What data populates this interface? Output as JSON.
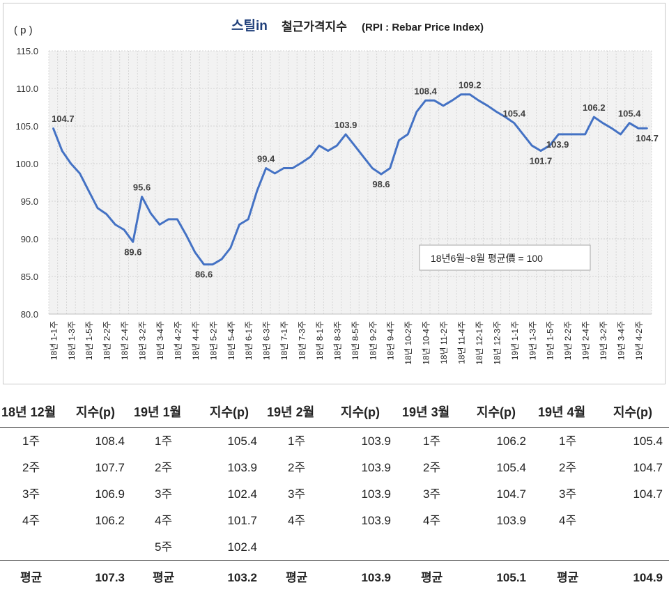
{
  "chart_data": {
    "type": "line",
    "title_brand": "스틸in",
    "title": "철근가격지수",
    "title_suffix": "(RPI : Rebar Price Index)",
    "ylabel": "( p )",
    "ylim": [
      80,
      115
    ],
    "yticks": [
      "80.0",
      "85.0",
      "90.0",
      "95.0",
      "100.0",
      "105.0",
      "110.0",
      "115.0"
    ],
    "grid": "vertical and horizontal dotted",
    "legend_note": "18년6월~8월 평균價 = 100",
    "line_color": "#4472c4",
    "categories": [
      "18년 1-1주",
      "",
      "18년 1-3주",
      "",
      "18년 1-5주",
      "",
      "18년 2-2주",
      "",
      "18년 2-4주",
      "",
      "18년 3-2주",
      "",
      "18년 3-4주",
      "",
      "18년 4-2주",
      "",
      "18년 4-4주",
      "",
      "18년 5-2주",
      "",
      "18년 5-4주",
      "",
      "18년 6-1주",
      "",
      "18년 6-3주",
      "",
      "18년 7-1주",
      "",
      "18년 7-3주",
      "",
      "18년 8-1주",
      "",
      "18년 8-3주",
      "",
      "18년 8-5주",
      "",
      "18년 9-2주",
      "",
      "18년 9-4주",
      "",
      "18년 10-2주",
      "",
      "18년 10-4주",
      "",
      "18년 11-2주",
      "",
      "18년 11-4주",
      "",
      "18년 12-1주",
      "",
      "18년 12-3주",
      "",
      "19년 1-1주",
      "",
      "19년 1-3주",
      "",
      "19년 1-5주",
      "",
      "19년 2-2주",
      "",
      "19년 2-4주",
      "",
      "19년 3-2주",
      "",
      "19년 3-4주",
      "",
      "19년 4-2주",
      ""
    ],
    "values": [
      104.7,
      101.7,
      100.0,
      98.7,
      96.4,
      94.1,
      93.3,
      91.9,
      91.2,
      89.6,
      95.6,
      93.4,
      91.9,
      92.6,
      92.6,
      90.5,
      88.2,
      86.6,
      86.6,
      87.3,
      88.8,
      91.9,
      92.6,
      96.4,
      99.4,
      98.7,
      99.4,
      99.4,
      100.1,
      100.9,
      102.4,
      101.7,
      102.4,
      103.9,
      102.4,
      100.9,
      99.4,
      98.6,
      99.4,
      103.1,
      103.9,
      106.9,
      108.4,
      108.4,
      107.7,
      108.4,
      109.2,
      109.2,
      108.4,
      107.7,
      106.9,
      106.2,
      105.4,
      103.9,
      102.4,
      101.7,
      102.4,
      103.9,
      103.9,
      103.9,
      103.9,
      106.2,
      105.4,
      104.7,
      103.9,
      105.4,
      104.7,
      104.7
    ],
    "data_labels": [
      {
        "i": 0,
        "text": "104.7"
      },
      {
        "i": 9,
        "text": "89.6"
      },
      {
        "i": 10,
        "text": "95.6"
      },
      {
        "i": 17,
        "text": "86.6"
      },
      {
        "i": 24,
        "text": "99.4"
      },
      {
        "i": 33,
        "text": "103.9"
      },
      {
        "i": 37,
        "text": "98.6"
      },
      {
        "i": 42,
        "text": "108.4"
      },
      {
        "i": 47,
        "text": "109.2"
      },
      {
        "i": 52,
        "text": "105.4"
      },
      {
        "i": 55,
        "text": "101.7"
      },
      {
        "i": 58,
        "text": "103.9"
      },
      {
        "i": 61,
        "text": "106.2"
      },
      {
        "i": 65,
        "text": "105.4"
      },
      {
        "i": 67,
        "text": "104.7"
      }
    ]
  },
  "table": {
    "months": [
      {
        "month": "18년 12월",
        "col": "지수(p)",
        "rows": [
          [
            "1주",
            "108.4"
          ],
          [
            "2주",
            "107.7"
          ],
          [
            "3주",
            "106.9"
          ],
          [
            "4주",
            "106.2"
          ]
        ],
        "avg_label": "평균",
        "avg": "107.3"
      },
      {
        "month": "19년 1월",
        "col": "지수(p)",
        "rows": [
          [
            "1주",
            "105.4"
          ],
          [
            "2주",
            "103.9"
          ],
          [
            "3주",
            "102.4"
          ],
          [
            "4주",
            "101.7"
          ],
          [
            "5주",
            "102.4"
          ]
        ],
        "avg_label": "평균",
        "avg": "103.2"
      },
      {
        "month": "19년 2월",
        "col": "지수(p)",
        "rows": [
          [
            "1주",
            "103.9"
          ],
          [
            "2주",
            "103.9"
          ],
          [
            "3주",
            "103.9"
          ],
          [
            "4주",
            "103.9"
          ]
        ],
        "avg_label": "평균",
        "avg": "103.9"
      },
      {
        "month": "19년 3월",
        "col": "지수(p)",
        "rows": [
          [
            "1주",
            "106.2"
          ],
          [
            "2주",
            "105.4"
          ],
          [
            "3주",
            "104.7"
          ],
          [
            "4주",
            "103.9"
          ]
        ],
        "avg_label": "평균",
        "avg": "105.1"
      },
      {
        "month": "19년 4월",
        "col": "지수(p)",
        "rows": [
          [
            "1주",
            "105.4"
          ],
          [
            "2주",
            "104.7"
          ],
          [
            "3주",
            "104.7"
          ],
          [
            "4주",
            ""
          ]
        ],
        "avg_label": "평균",
        "avg": "104.9"
      }
    ]
  }
}
